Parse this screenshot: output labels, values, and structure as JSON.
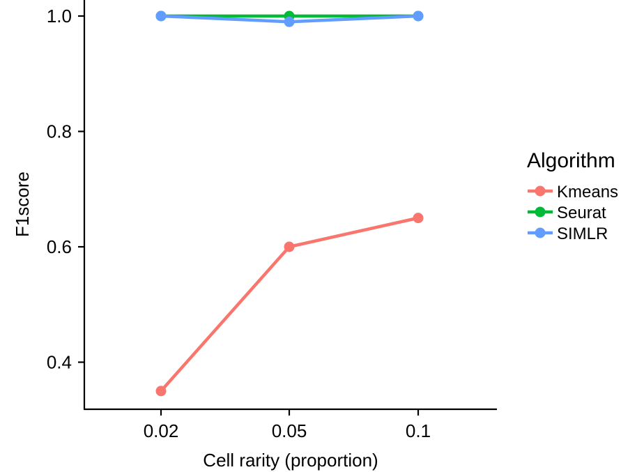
{
  "chart_data": {
    "type": "line",
    "title": "",
    "xlabel": "Cell rarity (proportion)",
    "ylabel": "F1score",
    "categories": [
      "0.02",
      "0.05",
      "0.1"
    ],
    "ylim": [
      0.29,
      1.03
    ],
    "yticks": [
      0.4,
      0.6,
      0.8,
      1.0
    ],
    "ytick_labels": [
      "0.4",
      "0.6",
      "0.8",
      "1.0"
    ],
    "grid": false,
    "legend": {
      "title": "Algorithm",
      "placement": "right"
    },
    "series": [
      {
        "name": "Kmeans",
        "color": "#F8766D",
        "values": [
          0.35,
          0.6,
          0.65
        ]
      },
      {
        "name": "Seurat",
        "color": "#00BA38",
        "values": [
          1.0,
          1.0,
          1.0
        ]
      },
      {
        "name": "SIMLR",
        "color": "#619CFF",
        "values": [
          1.0,
          0.99,
          1.0
        ]
      }
    ]
  }
}
